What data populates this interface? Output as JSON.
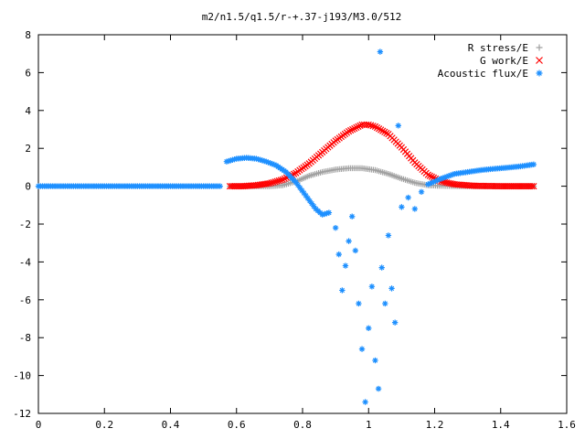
{
  "chart_data": {
    "type": "scatter",
    "title": "m2/n1.5/q1.5/r-+.37-j193/M3.0/512",
    "xlabel": "",
    "ylabel": "",
    "xlim": [
      0,
      1.6
    ],
    "ylim": [
      -12,
      8
    ],
    "x_ticks": [
      "0",
      "0.2",
      "0.4",
      "0.6",
      "0.8",
      "1",
      "1.2",
      "1.4",
      "1.6"
    ],
    "y_ticks": [
      "8",
      "6",
      "4",
      "2",
      "0",
      "-2",
      "-4",
      "-6",
      "-8",
      "-10",
      "-12"
    ],
    "grid": false,
    "legend_position": "top-right",
    "series": [
      {
        "name": "R stress/E",
        "marker": "plus",
        "color": "#a0a0a0",
        "points": [
          [
            0.58,
            0.0
          ],
          [
            0.62,
            0.0
          ],
          [
            0.66,
            0.0
          ],
          [
            0.7,
            0.0
          ],
          [
            0.74,
            0.05
          ],
          [
            0.78,
            0.25
          ],
          [
            0.82,
            0.55
          ],
          [
            0.86,
            0.75
          ],
          [
            0.9,
            0.88
          ],
          [
            0.94,
            0.95
          ],
          [
            0.98,
            0.95
          ],
          [
            1.02,
            0.85
          ],
          [
            1.06,
            0.65
          ],
          [
            1.1,
            0.4
          ],
          [
            1.14,
            0.18
          ],
          [
            1.18,
            0.05
          ],
          [
            1.22,
            0.02
          ],
          [
            1.28,
            0.0
          ],
          [
            1.36,
            0.0
          ],
          [
            1.44,
            0.0
          ],
          [
            1.5,
            0.0
          ]
        ]
      },
      {
        "name": "G work/E",
        "marker": "cross",
        "color": "#ff0000",
        "points": [
          [
            0.58,
            0.0
          ],
          [
            0.62,
            0.0
          ],
          [
            0.66,
            0.05
          ],
          [
            0.7,
            0.15
          ],
          [
            0.74,
            0.35
          ],
          [
            0.78,
            0.7
          ],
          [
            0.82,
            1.2
          ],
          [
            0.86,
            1.8
          ],
          [
            0.9,
            2.4
          ],
          [
            0.94,
            2.9
          ],
          [
            0.98,
            3.25
          ],
          [
            1.0,
            3.25
          ],
          [
            1.02,
            3.15
          ],
          [
            1.06,
            2.75
          ],
          [
            1.1,
            2.05
          ],
          [
            1.14,
            1.25
          ],
          [
            1.18,
            0.6
          ],
          [
            1.22,
            0.25
          ],
          [
            1.26,
            0.1
          ],
          [
            1.32,
            0.02
          ],
          [
            1.4,
            0.0
          ],
          [
            1.5,
            0.0
          ]
        ]
      },
      {
        "name": "Acoustic flux/E",
        "marker": "star",
        "color": "#1e90ff",
        "points": [
          [
            0.0,
            0.0
          ],
          [
            0.05,
            0.0
          ],
          [
            0.1,
            0.0
          ],
          [
            0.15,
            0.0
          ],
          [
            0.2,
            0.0
          ],
          [
            0.25,
            0.0
          ],
          [
            0.3,
            0.0
          ],
          [
            0.35,
            0.0
          ],
          [
            0.4,
            0.0
          ],
          [
            0.45,
            0.0
          ],
          [
            0.5,
            0.0
          ],
          [
            0.55,
            0.0
          ],
          [
            0.57,
            1.3
          ],
          [
            0.6,
            1.45
          ],
          [
            0.63,
            1.5
          ],
          [
            0.66,
            1.45
          ],
          [
            0.69,
            1.3
          ],
          [
            0.72,
            1.1
          ],
          [
            0.75,
            0.75
          ],
          [
            0.78,
            0.2
          ],
          [
            0.81,
            -0.5
          ],
          [
            0.84,
            -1.2
          ],
          [
            0.86,
            -1.5
          ],
          [
            0.88,
            -1.4
          ],
          [
            0.9,
            -2.2
          ],
          [
            0.91,
            -3.6
          ],
          [
            0.92,
            -5.5
          ],
          [
            0.93,
            -4.2
          ],
          [
            0.94,
            -2.9
          ],
          [
            0.95,
            -1.6
          ],
          [
            0.96,
            -3.4
          ],
          [
            0.97,
            -6.2
          ],
          [
            0.98,
            -8.6
          ],
          [
            0.99,
            -11.4
          ],
          [
            1.0,
            -7.5
          ],
          [
            1.01,
            -5.3
          ],
          [
            1.02,
            -9.2
          ],
          [
            1.03,
            -10.7
          ],
          [
            1.035,
            7.1
          ],
          [
            1.04,
            -4.3
          ],
          [
            1.05,
            -6.2
          ],
          [
            1.06,
            -2.6
          ],
          [
            1.07,
            -5.4
          ],
          [
            1.08,
            -7.2
          ],
          [
            1.09,
            3.2
          ],
          [
            1.1,
            -1.1
          ],
          [
            1.12,
            -0.6
          ],
          [
            1.14,
            -1.2
          ],
          [
            1.16,
            -0.3
          ],
          [
            1.18,
            0.1
          ],
          [
            1.22,
            0.4
          ],
          [
            1.26,
            0.65
          ],
          [
            1.3,
            0.75
          ],
          [
            1.34,
            0.85
          ],
          [
            1.38,
            0.92
          ],
          [
            1.42,
            0.98
          ],
          [
            1.46,
            1.05
          ],
          [
            1.5,
            1.15
          ]
        ]
      }
    ]
  }
}
